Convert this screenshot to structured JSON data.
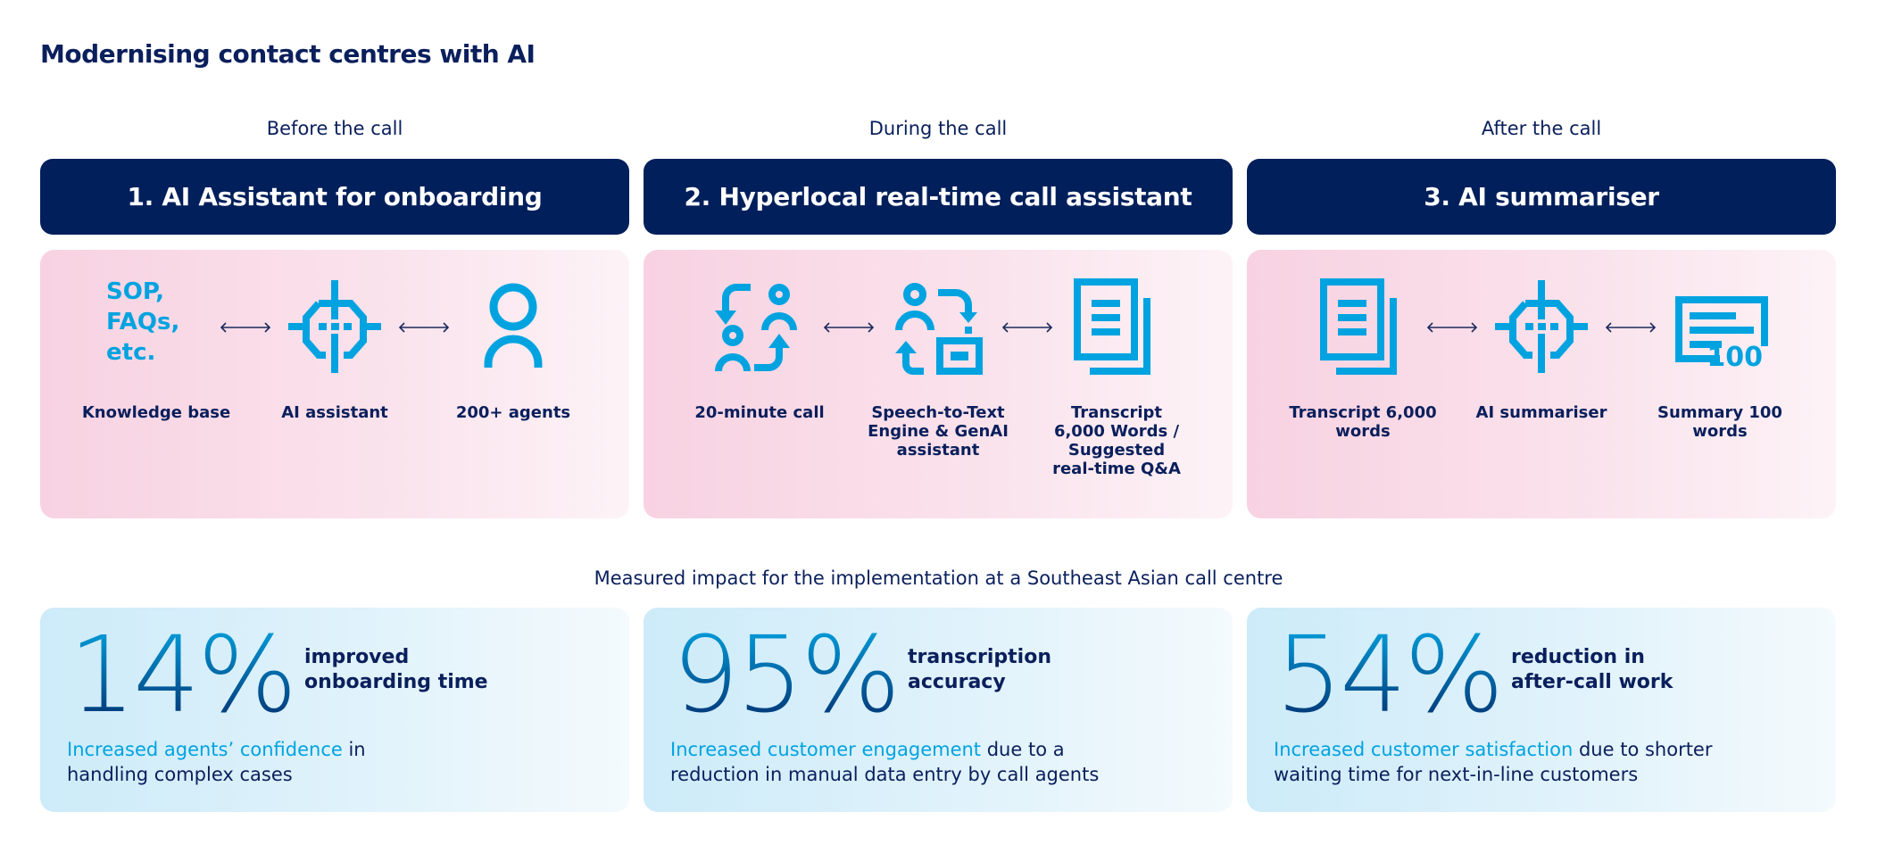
{
  "title": "Modernising contact centres with AI",
  "colors": {
    "navy": "#001f5b",
    "cyan": "#00a3e0"
  },
  "phases": [
    {
      "label": "Before the call",
      "heading": "1. AI Assistant for onboarding",
      "items": [
        {
          "icon": "text-sop-faqs",
          "text": [
            "SOP,",
            "FAQs,",
            "etc."
          ],
          "label": "Knowledge base"
        },
        {
          "icon": "ai-chip-icon",
          "label": "AI assistant"
        },
        {
          "icon": "person-icon",
          "label": "200+ agents"
        }
      ]
    },
    {
      "label": "During the call",
      "heading": "2. Hyperlocal real-time call assistant",
      "items": [
        {
          "icon": "conversation-icon",
          "label": "20-minute call"
        },
        {
          "icon": "speech-engine-icon",
          "label": "Speech-to-Text Engine & GenAI assistant"
        },
        {
          "icon": "document-icon",
          "label": "Transcript 6,000 Words / Suggested real-time Q&A"
        }
      ]
    },
    {
      "label": "After the call",
      "heading": "3. AI summariser",
      "items": [
        {
          "icon": "document-icon",
          "label": "Transcript 6,000 words"
        },
        {
          "icon": "ai-chip-icon",
          "label": "AI summariser"
        },
        {
          "icon": "summary-icon",
          "badge": "100",
          "label": "Summary 100 words"
        }
      ]
    }
  ],
  "impact_title": "Measured impact for the implementation at a Southeast Asian call centre",
  "metrics": [
    {
      "value": "14%",
      "line1": "improved",
      "line2": "onboarding time",
      "highlight": "Increased agents’ confidence",
      "rest1": " in",
      "rest2": "handling complex cases"
    },
    {
      "value": "95%",
      "line1": "transcription",
      "line2": "accuracy",
      "highlight": "Increased customer engagement",
      "rest1": " due to a",
      "rest2": "reduction in manual data entry by call agents"
    },
    {
      "value": "54%",
      "line1": "reduction in",
      "line2": "after-call work",
      "highlight": "Increased customer satisfaction",
      "rest1": " due to shorter",
      "rest2": "waiting time for next-in-line customers"
    }
  ]
}
